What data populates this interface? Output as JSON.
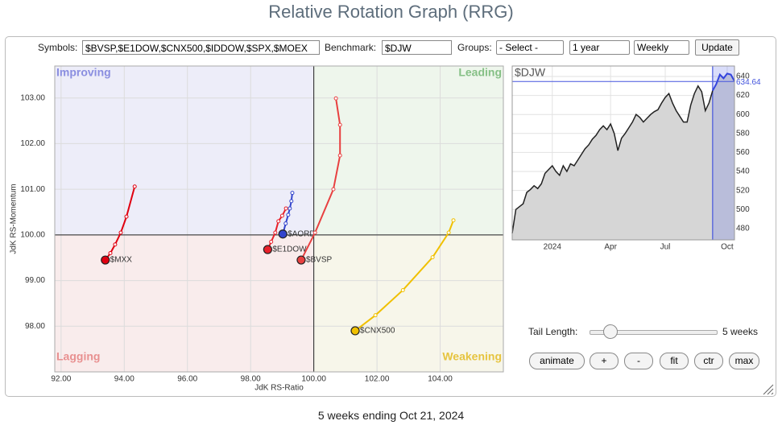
{
  "header": {
    "title": "Relative Rotation Graph (RRG)"
  },
  "toolbar": {
    "symbols_label": "Symbols:",
    "symbols": "$BVSP,$E1DOW,$CNX500,$IDDOW,$SPX,$MOEX",
    "benchmark_label": "Benchmark:",
    "benchmark": "$DJW",
    "groups_label": "Groups:",
    "groups": "- Select -",
    "period": "1 year",
    "interval": "Weekly",
    "update": "Update"
  },
  "chart_data": [
    {
      "type": "rrg",
      "xlabel": "JdK RS-Ratio",
      "ylabel": "JdK RS-Momentum",
      "xlim": [
        91.8,
        106.0
      ],
      "ylim": [
        97.0,
        103.7
      ],
      "center": {
        "x": 100,
        "y": 100
      },
      "xticks": [
        {
          "value": 92,
          "label": "92.00"
        },
        {
          "value": 94,
          "label": "94.00"
        },
        {
          "value": 96,
          "label": "96.00"
        },
        {
          "value": 98,
          "label": "98.00"
        },
        {
          "value": 100,
          "label": "100.00"
        },
        {
          "value": 102,
          "label": "102.00"
        },
        {
          "value": 104,
          "label": "104.00"
        }
      ],
      "yticks": [
        {
          "value": 98,
          "label": "98.00"
        },
        {
          "value": 99,
          "label": "99.00"
        },
        {
          "value": 100,
          "label": "100.00"
        },
        {
          "value": 101,
          "label": "101.00"
        },
        {
          "value": 102,
          "label": "102.00"
        },
        {
          "value": 103,
          "label": "103.00"
        }
      ],
      "grid": true,
      "quadrants": {
        "improving": "Improving",
        "leading": "Leading",
        "lagging": "Lagging",
        "weakening": "Weakening"
      },
      "series": [
        {
          "name": "$MXX",
          "color": "#e00010",
          "x": [
            94.33,
            94.07,
            93.89,
            93.71,
            93.56,
            93.4
          ],
          "values": [
            101.06,
            100.4,
            100.05,
            99.79,
            99.6,
            99.45
          ]
        },
        {
          "name": "$E1DOW",
          "color": "#e8202a",
          "x": [
            99.12,
            99.0,
            98.88,
            98.78,
            98.65,
            98.54
          ],
          "values": [
            100.58,
            100.42,
            100.3,
            100.05,
            99.85,
            99.68
          ]
        },
        {
          "name": "$AORD",
          "color": "#3344cc",
          "x": [
            99.32,
            99.29,
            99.24,
            99.19,
            99.11,
            99.02
          ],
          "values": [
            100.92,
            100.74,
            100.58,
            100.44,
            100.25,
            100.02
          ]
        },
        {
          "name": "$BVSP",
          "color": "#e84040",
          "x": [
            100.7,
            100.83,
            100.83,
            100.62,
            100.04,
            99.6
          ],
          "values": [
            102.99,
            102.41,
            101.74,
            101.0,
            100.05,
            99.45
          ]
        },
        {
          "name": "$CNX500",
          "color": "#f0c000",
          "x": [
            104.42,
            104.27,
            103.76,
            102.82,
            101.95,
            101.31
          ],
          "values": [
            100.32,
            100.05,
            99.51,
            98.79,
            98.24,
            97.9
          ]
        }
      ]
    },
    {
      "type": "line",
      "title": "$DJW",
      "color": "#222222",
      "categories": [
        null,
        null,
        null,
        null,
        null,
        null,
        null,
        null,
        null,
        null,
        null,
        "2024",
        null,
        null,
        null,
        null,
        null,
        null,
        null,
        null,
        null,
        null,
        null,
        null,
        null,
        null,
        null,
        "Apr",
        null,
        null,
        null,
        null,
        null,
        null,
        null,
        null,
        null,
        null,
        null,
        null,
        null,
        null,
        "Jul",
        null,
        null,
        null,
        null,
        null,
        null,
        null,
        null,
        null,
        null,
        null,
        null,
        null,
        null,
        null,
        null,
        "Oct",
        null,
        null
      ],
      "values": [
        475,
        500,
        503,
        506,
        518,
        521,
        525,
        522,
        527,
        538,
        542,
        546,
        540,
        536,
        546,
        540,
        548,
        546,
        552,
        558,
        564,
        568,
        574,
        578,
        584,
        588,
        584,
        590,
        580,
        562,
        575,
        580,
        586,
        592,
        600,
        597,
        592,
        596,
        600,
        603,
        605,
        612,
        618,
        622,
        612,
        604,
        598,
        592,
        592,
        610,
        622,
        630,
        624,
        604,
        612,
        625,
        632,
        642,
        638,
        643,
        642,
        635
      ],
      "ylim": [
        468,
        651
      ],
      "yticks": [
        480,
        500,
        520,
        540,
        560,
        580,
        600,
        620,
        640
      ],
      "last_value": 634.64,
      "highlight_categories": [
        55,
        61
      ]
    }
  ],
  "controls": {
    "tail_label": "Tail Length:",
    "tail_value": "5 weeks",
    "buttons": [
      "animate",
      "+",
      "-",
      "fit",
      "ctr",
      "max"
    ]
  },
  "footer": {
    "caption": "5 weeks ending Oct 21, 2024"
  }
}
